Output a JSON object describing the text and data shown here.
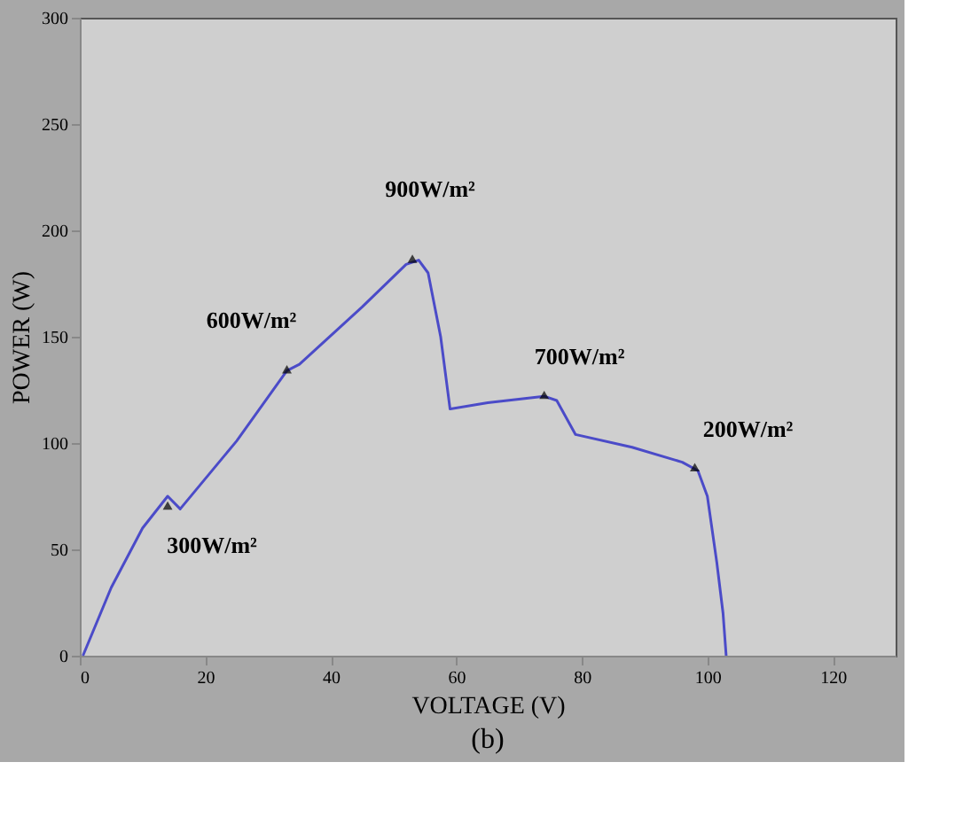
{
  "chart_data": {
    "type": "line",
    "xlabel": "VOLTAGE (V)",
    "ylabel": "POWER (W)",
    "annotations": [
      "(b)",
      {
        "text": "300W/m²",
        "x": 14,
        "y": 70
      },
      {
        "text": "600W/m²",
        "x": 33,
        "y": 134
      },
      {
        "text": "900W/m²",
        "x": 53,
        "y": 186
      },
      {
        "text": "700W/m²",
        "x": 74,
        "y": 122
      },
      {
        "text": "200W/m²",
        "x": 98,
        "y": 88
      }
    ],
    "x": [
      0.5,
      5,
      10,
      14,
      16,
      25,
      33,
      35,
      45,
      52,
      54,
      55.5,
      57.5,
      59,
      65,
      74,
      76,
      79,
      88,
      96,
      98.5,
      100,
      101.5,
      102.5,
      103
    ],
    "series": [
      {
        "color": "#4b4bc8",
        "values": [
          0,
          32,
          60,
          75,
          69,
          101,
          134,
          137,
          164,
          184,
          186,
          180,
          150,
          116,
          119,
          122,
          120,
          104,
          98,
          91,
          87,
          75,
          44,
          20,
          0
        ]
      }
    ],
    "xlim": [
      0,
      130
    ],
    "xticks": [
      0,
      20,
      40,
      60,
      80,
      100,
      120
    ],
    "ylim": [
      0,
      300
    ],
    "yticks": [
      0,
      50,
      100,
      150,
      200,
      250,
      300
    ],
    "grid": false,
    "line_style": "solid",
    "marker": "none"
  }
}
